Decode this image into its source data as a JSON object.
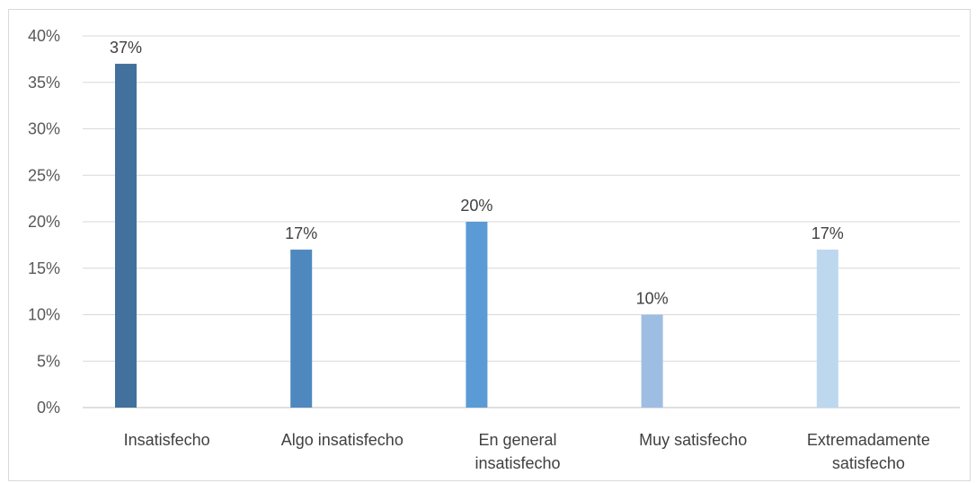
{
  "chart_data": {
    "type": "bar",
    "title": "",
    "xlabel": "",
    "ylabel": "",
    "ylim": [
      0,
      40
    ],
    "yticks": [
      0,
      5,
      10,
      15,
      20,
      25,
      30,
      35,
      40
    ],
    "ytick_labels": [
      "0%",
      "5%",
      "10%",
      "15%",
      "20%",
      "25%",
      "30%",
      "35%",
      "40%"
    ],
    "grid": true,
    "legend": "none",
    "categories": [
      [
        "Insatisfecho"
      ],
      [
        "Algo insatisfecho"
      ],
      [
        "En general",
        "insatisfecho"
      ],
      [
        "Muy satisfecho"
      ],
      [
        "Extremadamente",
        "satisfecho"
      ]
    ],
    "values": [
      37,
      17,
      20,
      10,
      17
    ],
    "data_labels": [
      "37%",
      "17%",
      "20%",
      "10%",
      "17%"
    ],
    "colors": [
      "#41719C",
      "#4E88BF",
      "#5B9BD5",
      "#9DBDE3",
      "#BDD7EE"
    ]
  }
}
